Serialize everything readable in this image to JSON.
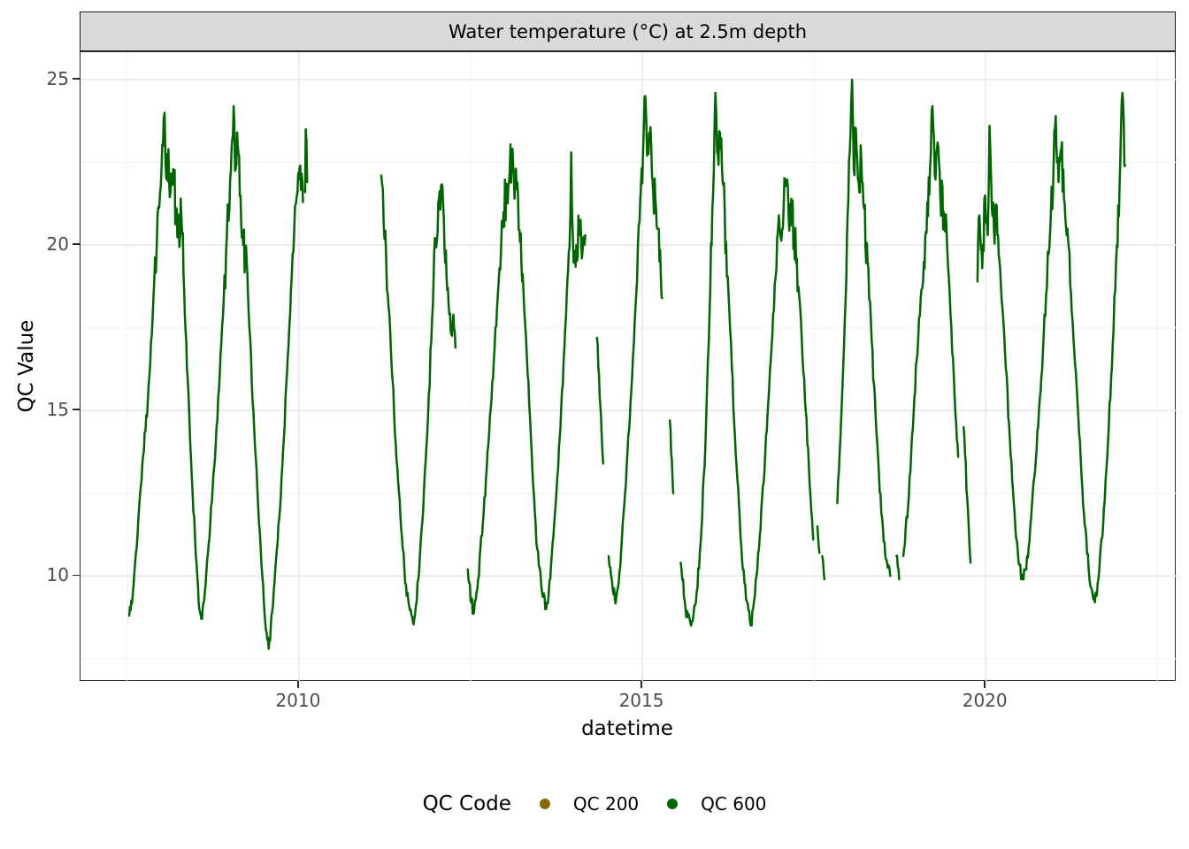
{
  "figure": {
    "strip_title": "Water temperature (°C) at 2.5m depth",
    "x_axis": {
      "label": "datetime",
      "tick_labels": [
        "2010",
        "2015",
        "2020"
      ]
    },
    "y_axis": {
      "label": "QC Value",
      "tick_labels": [
        "10",
        "15",
        "20",
        "25"
      ]
    },
    "legend": {
      "title": "QC Code",
      "entries": [
        {
          "label": "QC 200",
          "color": "#8B6508"
        },
        {
          "label": "QC 600",
          "color": "#006400"
        }
      ]
    }
  },
  "chart_data": {
    "type": "line",
    "title": "Water temperature (°C) at 2.5m depth",
    "xlabel": "datetime",
    "ylabel": "QC Value",
    "xlim": [
      2006.82,
      2022.78
    ],
    "ylim": [
      6.8,
      25.83
    ],
    "x_major_ticks": [
      2010,
      2015,
      2020
    ],
    "y_major_ticks": [
      10,
      15,
      20,
      25
    ],
    "x_minor_gridlines": [
      2007.5,
      2012.5,
      2017.5,
      2022.5
    ],
    "y_minor_gridlines": [
      7.5,
      12.5,
      17.5,
      22.5
    ],
    "grid": true,
    "legend_position": "bottom",
    "panel_theme": {
      "major_grid_color": "#e6e6e6",
      "minor_grid_color": "#f3f3f3",
      "border_color": "#2b2b2b",
      "strip_bg": "#d9d9d9"
    },
    "series": [
      {
        "name": "QC 200",
        "color": "#8B6508",
        "points": []
      },
      {
        "name": "QC 600",
        "color": "#006400",
        "points": [
          [
            2007.53,
            8.8
          ],
          [
            2007.58,
            9.4
          ],
          [
            2007.65,
            11.2
          ],
          [
            2007.73,
            13.6
          ],
          [
            2007.8,
            15.3
          ],
          [
            2007.87,
            17.8
          ],
          [
            2007.93,
            20.0
          ],
          [
            2007.99,
            21.8
          ],
          [
            2008.02,
            23.0
          ],
          [
            2008.045,
            24.0
          ],
          [
            2008.07,
            22.0
          ],
          [
            2008.1,
            22.9
          ],
          [
            2008.13,
            21.6
          ],
          [
            2008.17,
            22.3
          ],
          [
            2008.21,
            21.0
          ],
          [
            2008.25,
            20.5
          ],
          [
            2008.29,
            20.8
          ],
          [
            2008.33,
            18.6
          ],
          [
            2008.38,
            16.0
          ],
          [
            2008.44,
            13.0
          ],
          [
            2008.5,
            10.6
          ],
          [
            2008.55,
            9.0
          ],
          [
            2008.58,
            8.7
          ],
          [
            2008.63,
            9.5
          ],
          [
            2008.71,
            11.6
          ],
          [
            2008.79,
            14.0
          ],
          [
            2008.87,
            17.0
          ],
          [
            2008.94,
            19.8
          ],
          [
            2009.0,
            22.0
          ],
          [
            2009.03,
            23.2
          ],
          [
            2009.05,
            24.2
          ],
          [
            2009.08,
            22.3
          ],
          [
            2009.11,
            23.0
          ],
          [
            2009.15,
            21.5
          ],
          [
            2009.19,
            20.0
          ],
          [
            2009.24,
            19.5
          ],
          [
            2009.29,
            17.2
          ],
          [
            2009.35,
            14.4
          ],
          [
            2009.42,
            11.6
          ],
          [
            2009.49,
            9.2
          ],
          [
            2009.53,
            8.3
          ],
          [
            2009.56,
            7.8
          ],
          [
            2009.61,
            8.9
          ],
          [
            2009.69,
            11.0
          ],
          [
            2009.77,
            13.8
          ],
          [
            2009.85,
            17.0
          ],
          [
            2009.92,
            19.8
          ],
          [
            2009.98,
            21.6
          ],
          [
            2010.02,
            22.4
          ],
          [
            2010.06,
            21.3
          ],
          null,
          [
            2010.09,
            21.6
          ],
          [
            2010.1,
            23.5
          ],
          [
            2010.12,
            21.9
          ],
          null,
          [
            2011.2,
            22.1
          ],
          [
            2011.27,
            19.6
          ],
          [
            2011.34,
            16.8
          ],
          [
            2011.41,
            14.0
          ],
          [
            2011.49,
            11.4
          ],
          [
            2011.57,
            9.4
          ],
          [
            2011.64,
            8.8
          ],
          [
            2011.68,
            8.7
          ],
          [
            2011.74,
            9.9
          ],
          [
            2011.81,
            12.0
          ],
          [
            2011.88,
            14.8
          ],
          [
            2011.94,
            17.8
          ],
          [
            2011.99,
            20.0
          ],
          [
            2012.04,
            21.4
          ],
          [
            2012.07,
            21.8
          ],
          [
            2012.11,
            20.8
          ],
          [
            2012.15,
            19.0
          ],
          [
            2012.18,
            18.2
          ],
          [
            2012.22,
            17.3
          ],
          [
            2012.25,
            17.9
          ],
          [
            2012.28,
            16.9
          ],
          null,
          [
            2012.46,
            10.2
          ],
          [
            2012.51,
            9.2
          ],
          [
            2012.55,
            8.9
          ],
          [
            2012.61,
            9.9
          ],
          [
            2012.69,
            11.9
          ],
          [
            2012.77,
            14.3
          ],
          [
            2012.85,
            16.9
          ],
          [
            2012.92,
            19.3
          ],
          [
            2012.98,
            21.0
          ],
          [
            2013.03,
            21.7
          ],
          [
            2013.07,
            22.2
          ],
          [
            2013.1,
            22.7
          ],
          [
            2013.14,
            21.4
          ],
          [
            2013.18,
            21.9
          ],
          [
            2013.22,
            20.1
          ],
          [
            2013.27,
            18.6
          ],
          [
            2013.33,
            16.1
          ],
          [
            2013.4,
            13.2
          ],
          [
            2013.47,
            10.8
          ],
          [
            2013.54,
            9.5
          ],
          [
            2013.6,
            9.0
          ],
          [
            2013.66,
            9.9
          ],
          [
            2013.74,
            12.2
          ],
          [
            2013.82,
            15.1
          ],
          [
            2013.89,
            17.9
          ],
          [
            2013.94,
            19.9
          ],
          [
            2013.965,
            22.8
          ],
          [
            2013.99,
            20.2
          ],
          [
            2014.04,
            20.0
          ],
          [
            2014.09,
            20.5
          ],
          [
            2014.13,
            19.8
          ],
          [
            2014.17,
            20.3
          ],
          null,
          [
            2014.34,
            17.2
          ],
          [
            2014.38,
            15.4
          ],
          [
            2014.43,
            13.4
          ],
          null,
          [
            2014.51,
            10.6
          ],
          [
            2014.57,
            9.6
          ],
          [
            2014.62,
            9.3
          ],
          [
            2014.68,
            10.3
          ],
          [
            2014.75,
            12.5
          ],
          [
            2014.83,
            15.3
          ],
          [
            2014.9,
            18.1
          ],
          [
            2014.96,
            20.7
          ],
          [
            2015.01,
            22.7
          ],
          [
            2015.045,
            24.5
          ],
          [
            2015.07,
            22.7
          ],
          [
            2015.11,
            23.4
          ],
          [
            2015.15,
            21.9
          ],
          [
            2015.2,
            21.1
          ],
          [
            2015.25,
            19.5
          ],
          [
            2015.29,
            18.4
          ],
          null,
          [
            2015.4,
            14.7
          ],
          [
            2015.45,
            12.5
          ],
          null,
          [
            2015.56,
            10.4
          ],
          [
            2015.63,
            9.0
          ],
          [
            2015.71,
            8.5
          ],
          [
            2015.78,
            9.2
          ],
          [
            2015.85,
            11.0
          ],
          [
            2015.92,
            14.0
          ],
          [
            2015.98,
            18.0
          ],
          [
            2016.03,
            21.5
          ],
          [
            2016.065,
            24.6
          ],
          [
            2016.09,
            22.8
          ],
          [
            2016.13,
            23.4
          ],
          [
            2016.17,
            21.9
          ],
          [
            2016.22,
            20.1
          ],
          [
            2016.28,
            17.4
          ],
          [
            2016.35,
            14.2
          ],
          [
            2016.43,
            11.2
          ],
          [
            2016.51,
            9.3
          ],
          [
            2016.58,
            8.5
          ],
          [
            2016.64,
            9.4
          ],
          [
            2016.71,
            11.2
          ],
          [
            2016.79,
            13.7
          ],
          [
            2016.87,
            16.5
          ],
          [
            2016.94,
            19.0
          ],
          [
            2017.0,
            20.5
          ],
          [
            2017.06,
            21.2
          ],
          [
            2017.09,
            21.8
          ],
          [
            2017.13,
            20.9
          ],
          [
            2017.17,
            21.4
          ],
          [
            2017.21,
            20.2
          ],
          [
            2017.25,
            19.6
          ],
          [
            2017.31,
            17.7
          ],
          [
            2017.38,
            15.0
          ],
          [
            2017.45,
            12.4
          ],
          [
            2017.49,
            11.1
          ],
          null,
          [
            2017.55,
            11.5
          ],
          [
            2017.58,
            10.7
          ],
          null,
          [
            2017.62,
            10.6
          ],
          [
            2017.65,
            9.9
          ],
          null,
          [
            2017.84,
            12.2
          ],
          [
            2017.9,
            15.0
          ],
          [
            2017.96,
            18.3
          ],
          [
            2018.0,
            21.3
          ],
          [
            2018.03,
            23.3
          ],
          [
            2018.055,
            25.0
          ],
          [
            2018.08,
            22.3
          ],
          [
            2018.11,
            23.5
          ],
          [
            2018.15,
            21.9
          ],
          [
            2018.19,
            22.5
          ],
          [
            2018.23,
            21.1
          ],
          [
            2018.28,
            19.5
          ],
          [
            2018.34,
            17.1
          ],
          [
            2018.41,
            14.3
          ],
          [
            2018.48,
            11.9
          ],
          [
            2018.55,
            10.5
          ],
          [
            2018.61,
            10.0
          ],
          null,
          [
            2018.7,
            10.6
          ],
          [
            2018.74,
            9.9
          ],
          null,
          [
            2018.8,
            10.6
          ],
          [
            2018.87,
            12.1
          ],
          [
            2018.95,
            14.9
          ],
          [
            2019.03,
            17.8
          ],
          [
            2019.1,
            19.5
          ],
          [
            2019.15,
            21.3
          ],
          [
            2019.19,
            22.3
          ],
          [
            2019.225,
            24.2
          ],
          [
            2019.26,
            22.1
          ],
          [
            2019.3,
            23.1
          ],
          [
            2019.34,
            21.5
          ],
          [
            2019.39,
            21.0
          ],
          [
            2019.44,
            19.9
          ],
          [
            2019.5,
            17.5
          ],
          [
            2019.56,
            14.9
          ],
          [
            2019.6,
            13.6
          ],
          null,
          [
            2019.68,
            14.5
          ],
          [
            2019.73,
            12.4
          ],
          [
            2019.78,
            10.4
          ],
          null,
          [
            2019.88,
            18.9
          ],
          [
            2019.91,
            20.9
          ],
          [
            2019.95,
            19.3
          ],
          [
            2019.99,
            21.5
          ],
          [
            2020.03,
            20.3
          ],
          [
            2020.055,
            23.6
          ],
          [
            2020.08,
            21.9
          ],
          [
            2020.12,
            20.5
          ],
          [
            2020.16,
            21.2
          ],
          [
            2020.21,
            19.3
          ],
          [
            2020.27,
            17.3
          ],
          [
            2020.34,
            14.6
          ],
          [
            2020.41,
            12.2
          ],
          [
            2020.48,
            10.4
          ],
          [
            2020.54,
            9.9
          ],
          [
            2020.59,
            10.2
          ],
          [
            2020.65,
            11.5
          ],
          [
            2020.73,
            13.5
          ],
          [
            2020.81,
            16.0
          ],
          [
            2020.88,
            18.5
          ],
          [
            2020.94,
            20.5
          ],
          [
            2020.99,
            22.5
          ],
          [
            2021.02,
            23.9
          ],
          [
            2021.06,
            21.9
          ],
          [
            2021.1,
            22.9
          ],
          [
            2021.14,
            21.4
          ],
          [
            2021.18,
            20.3
          ],
          [
            2021.23,
            18.8
          ],
          [
            2021.29,
            16.8
          ],
          [
            2021.36,
            14.3
          ],
          [
            2021.43,
            11.9
          ],
          [
            2021.5,
            10.2
          ],
          [
            2021.56,
            9.4
          ],
          [
            2021.59,
            9.2
          ],
          [
            2021.64,
            9.9
          ],
          [
            2021.71,
            11.5
          ],
          [
            2021.78,
            14.0
          ],
          [
            2021.85,
            17.0
          ],
          [
            2021.91,
            20.0
          ],
          [
            2021.96,
            22.5
          ],
          [
            2021.99,
            24.6
          ],
          [
            2022.03,
            22.4
          ]
        ]
      }
    ]
  }
}
